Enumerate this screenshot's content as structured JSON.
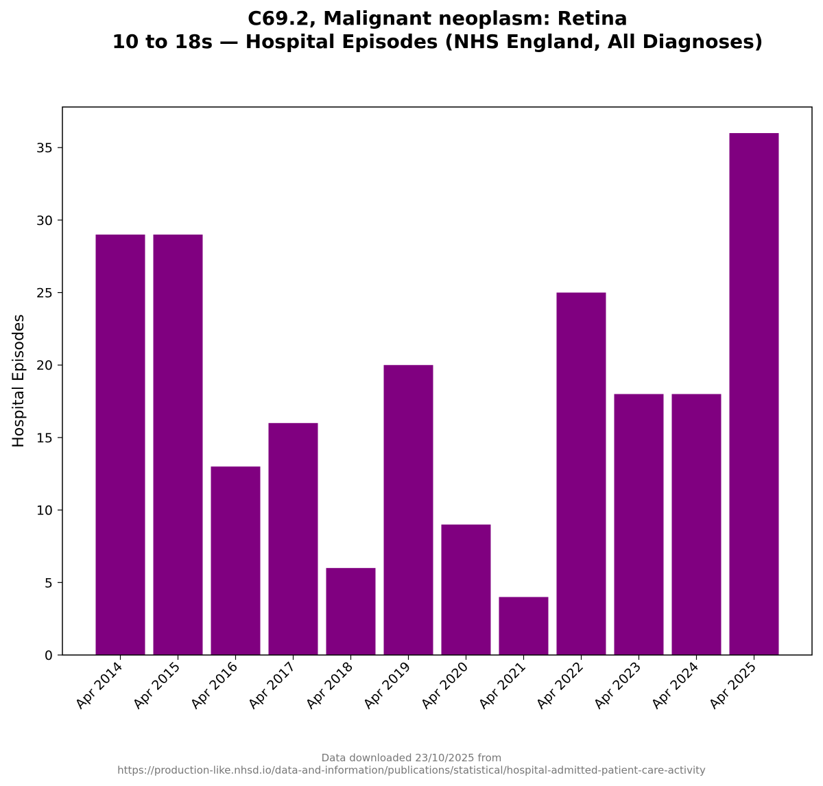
{
  "chart_data": {
    "type": "bar",
    "title_line1": "C69.2, Malignant neoplasm: Retina",
    "title_line2": "10 to 18s — Hospital Episodes (NHS England, All Diagnoses)",
    "xlabel": "",
    "ylabel": "Hospital Episodes",
    "categories": [
      "Apr 2014",
      "Apr 2015",
      "Apr 2016",
      "Apr 2017",
      "Apr 2018",
      "Apr 2019",
      "Apr 2020",
      "Apr 2021",
      "Apr 2022",
      "Apr 2023",
      "Apr 2024",
      "Apr 2025"
    ],
    "values": [
      29,
      29,
      13,
      16,
      6,
      20,
      9,
      4,
      25,
      18,
      18,
      36
    ],
    "ylim": [
      0,
      37.8
    ],
    "yticks": [
      0,
      5,
      10,
      15,
      20,
      25,
      30,
      35
    ],
    "bar_color": "#800080",
    "grid": false
  },
  "footer": {
    "line1": "Data downloaded 23/10/2025 from",
    "line2": "https://production-like.nhsd.io/data-and-information/publications/statistical/hospital-admitted-patient-care-activity"
  }
}
